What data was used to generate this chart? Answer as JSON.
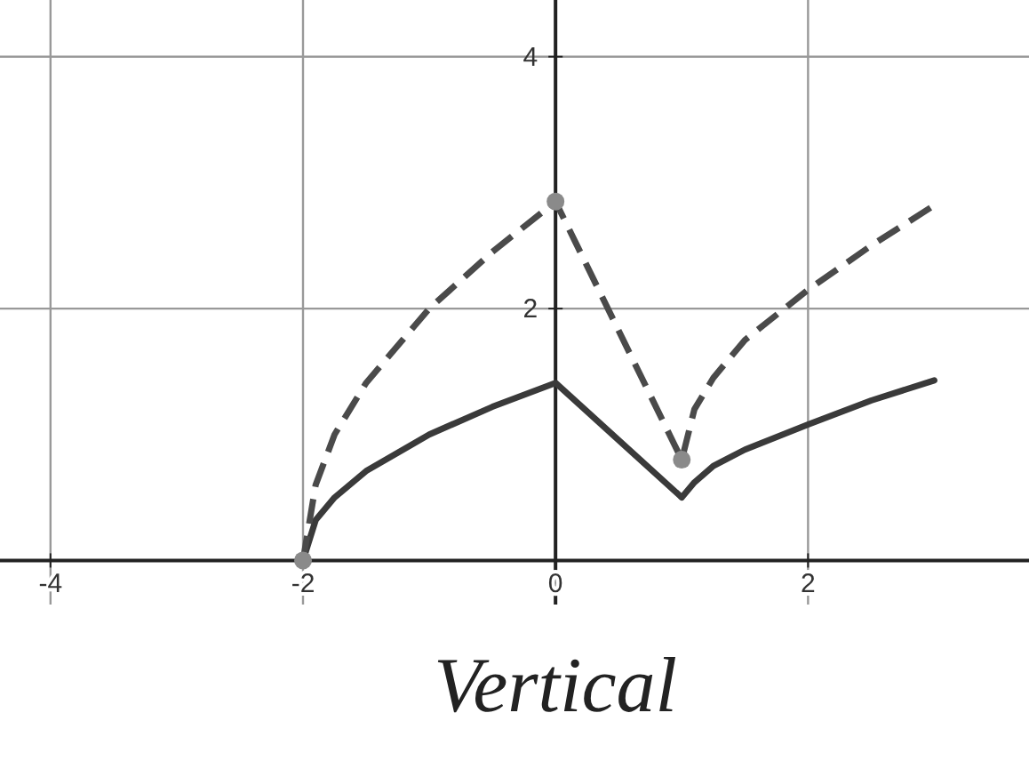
{
  "chart_data": {
    "type": "line",
    "xlim": [
      -4.4,
      3.75
    ],
    "ylim": [
      -0.35,
      4.45
    ],
    "xticks": [
      -4,
      -2,
      0,
      2
    ],
    "yticks": [
      {
        "value": 0,
        "label": null
      },
      2,
      4
    ],
    "grid": true,
    "marker": "none",
    "series": [
      {
        "color": "#3a3a3a",
        "line_style": "solid",
        "x": [
          -2,
          -1.9,
          -1.75,
          -1.5,
          -1,
          -0.5,
          0,
          1,
          1.1,
          1.25,
          1.5,
          2,
          2.5,
          3
        ],
        "values": [
          0,
          0.32,
          0.5,
          0.71,
          1.0,
          1.22,
          1.41,
          0.5,
          0.62,
          0.75,
          0.88,
          1.08,
          1.27,
          1.43
        ]
      },
      {
        "color": "#4a4a4a",
        "line_style": "dashed",
        "x": [
          -2,
          -1.9,
          -1.75,
          -1.5,
          -1,
          -0.5,
          0,
          1,
          1.1,
          1.25,
          1.5,
          2,
          2.5,
          3
        ],
        "values": [
          0,
          0.6,
          1.0,
          1.41,
          2.0,
          2.45,
          2.85,
          0.8,
          1.2,
          1.45,
          1.75,
          2.15,
          2.5,
          2.82
        ]
      },
      {
        "type": "scatter",
        "color": "#8a8a8a",
        "marker": "circle",
        "x": [
          -2,
          0,
          1
        ],
        "values": [
          0,
          2.85,
          0.8
        ]
      }
    ],
    "annotations": [
      "Vertical"
    ]
  }
}
